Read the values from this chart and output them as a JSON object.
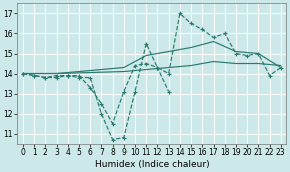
{
  "xlabel": "Humidex (Indice chaleur)",
  "xlim": [
    -0.5,
    23.5
  ],
  "ylim": [
    10.5,
    17.5
  ],
  "yticks": [
    11,
    12,
    13,
    14,
    15,
    16,
    17
  ],
  "xticks": [
    0,
    1,
    2,
    3,
    4,
    5,
    6,
    7,
    8,
    9,
    10,
    11,
    12,
    13,
    14,
    15,
    16,
    17,
    18,
    19,
    20,
    21,
    22,
    23
  ],
  "bg_color": "#cce8e8",
  "grid_color": "#ffffff",
  "line_color": "#297a6e",
  "lines": [
    {
      "x": [
        0,
        1,
        2,
        3,
        4,
        5,
        6,
        7,
        8,
        9,
        10,
        11,
        12,
        13,
        14,
        15,
        16,
        17,
        18,
        19,
        20,
        21,
        22,
        23
      ],
      "y": [
        14.0,
        13.9,
        13.8,
        13.8,
        13.9,
        13.8,
        13.8,
        12.0,
        10.7,
        10.8,
        13.1,
        15.5,
        14.3,
        14.0,
        17.0,
        16.5,
        16.2,
        15.8,
        16.0,
        15.0,
        14.9,
        15.0,
        13.9,
        14.3
      ],
      "style": "--",
      "marker": "+"
    },
    {
      "x": [
        0,
        1,
        2,
        3,
        4,
        5,
        6,
        7,
        8,
        9,
        10,
        11,
        12,
        13
      ],
      "y": [
        14.0,
        13.9,
        13.8,
        13.9,
        13.9,
        13.9,
        13.3,
        12.5,
        11.5,
        13.1,
        14.4,
        14.5,
        14.3,
        13.1
      ],
      "style": "--",
      "marker": "+"
    },
    {
      "x": [
        0,
        3,
        9,
        11,
        13,
        15,
        17,
        19,
        21,
        23
      ],
      "y": [
        14.0,
        14.0,
        14.3,
        14.9,
        15.1,
        15.3,
        15.6,
        15.1,
        15.0,
        14.3
      ],
      "style": "-",
      "marker": null
    },
    {
      "x": [
        0,
        3,
        9,
        11,
        13,
        15,
        17,
        19,
        21,
        23
      ],
      "y": [
        14.0,
        14.0,
        14.1,
        14.2,
        14.3,
        14.4,
        14.6,
        14.5,
        14.5,
        14.4
      ],
      "style": "-",
      "marker": null
    }
  ]
}
